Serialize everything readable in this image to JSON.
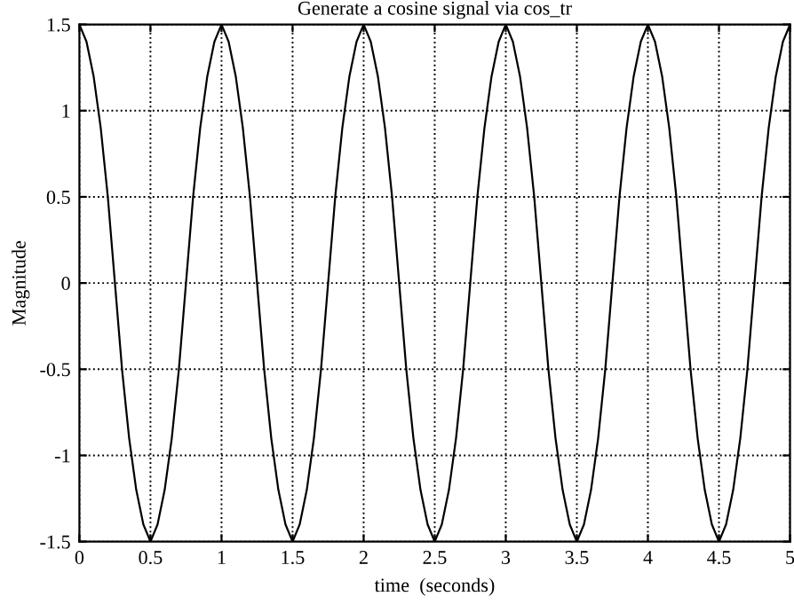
{
  "chart_data": {
    "type": "line",
    "title": "Generate a cosine signal via cos_tr",
    "xlabel": "time  (seconds)",
    "ylabel": "Magnitude",
    "x": [
      0,
      0.05,
      0.1,
      0.15,
      0.2,
      0.25,
      0.3,
      0.35,
      0.4,
      0.45,
      0.5,
      0.55,
      0.6,
      0.65,
      0.7,
      0.75,
      0.8,
      0.85,
      0.9,
      0.95,
      1,
      1.05,
      1.1,
      1.15,
      1.2,
      1.25,
      1.3,
      1.35,
      1.4,
      1.45,
      1.5,
      1.55,
      1.6,
      1.65,
      1.7,
      1.75,
      1.8,
      1.85,
      1.9,
      1.95,
      2,
      2.05,
      2.1,
      2.15,
      2.2,
      2.25,
      2.3,
      2.35,
      2.4,
      2.45,
      2.5,
      2.55,
      2.6,
      2.65,
      2.7,
      2.75,
      2.8,
      2.85,
      2.9,
      2.95,
      3,
      3.05,
      3.1,
      3.15,
      3.2,
      3.25,
      3.3,
      3.35,
      3.4,
      3.45,
      3.5,
      3.55,
      3.6,
      3.65,
      3.7,
      3.75,
      3.8,
      3.85,
      3.9,
      3.95,
      4,
      4.05,
      4.1,
      4.15,
      4.2,
      4.25,
      4.3,
      4.35,
      4.4,
      4.45,
      4.5,
      4.55,
      4.6,
      4.65,
      4.7,
      4.75,
      4.8,
      4.85,
      4.9,
      4.95,
      5
    ],
    "series": [
      {
        "color": "#000000",
        "values": [
          1.5,
          1.4,
          1.2,
          0.9,
          0.5,
          0,
          -0.5,
          -0.9,
          -1.2,
          -1.4,
          -1.5,
          -1.4,
          -1.2,
          -0.9,
          -0.5,
          0,
          0.5,
          0.9,
          1.2,
          1.4,
          1.5,
          1.4,
          1.2,
          0.9,
          0.5,
          0,
          -0.5,
          -0.9,
          -1.2,
          -1.4,
          -1.5,
          -1.4,
          -1.2,
          -0.9,
          -0.5,
          0,
          0.5,
          0.9,
          1.2,
          1.4,
          1.5,
          1.4,
          1.2,
          0.9,
          0.5,
          0,
          -0.5,
          -0.9,
          -1.2,
          -1.4,
          -1.5,
          -1.4,
          -1.2,
          -0.9,
          -0.5,
          0,
          0.5,
          0.9,
          1.2,
          1.4,
          1.5,
          1.4,
          1.2,
          0.9,
          0.5,
          0,
          -0.5,
          -0.9,
          -1.2,
          -1.4,
          -1.5,
          -1.4,
          -1.2,
          -0.9,
          -0.5,
          0,
          0.5,
          0.9,
          1.2,
          1.4,
          1.5,
          1.4,
          1.2,
          0.9,
          0.5,
          0,
          -0.5,
          -0.9,
          -1.2,
          -1.4,
          -1.5,
          -1.4,
          -1.2,
          -0.9,
          -0.5,
          0,
          0.5,
          0.9,
          1.2,
          1.4,
          1.5
        ]
      }
    ],
    "xlim": [
      0,
      5
    ],
    "xticks": [
      0,
      0.5,
      1,
      1.5,
      2,
      2.5,
      3,
      3.5,
      4,
      4.5,
      5
    ],
    "ylim": [
      -1.5,
      1.5
    ],
    "yticks": [
      -1.5,
      -1,
      -0.5,
      0,
      0.5,
      1,
      1.5
    ],
    "grid": true,
    "line_style": "solid",
    "marker": "none"
  }
}
